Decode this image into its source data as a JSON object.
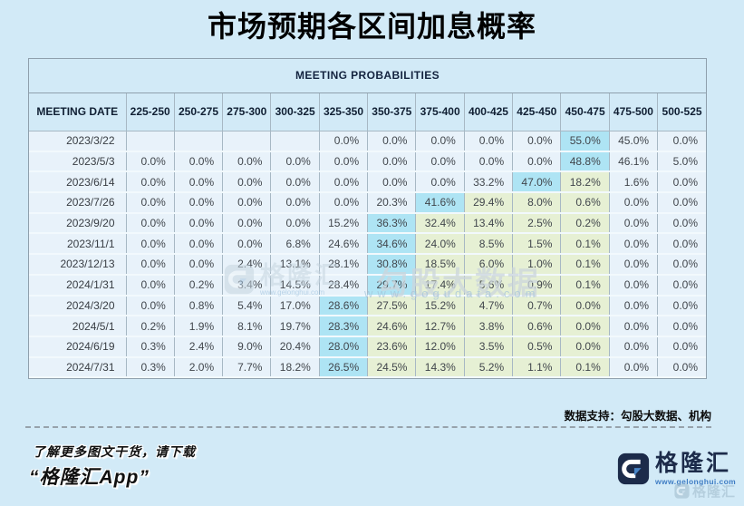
{
  "chart_data": {
    "type": "table",
    "title": "市场预期各区间加息概率",
    "table_header": "MEETING PROBABILITIES",
    "date_column_label": "MEETING DATE",
    "rate_columns": [
      "225-250",
      "250-275",
      "275-300",
      "300-325",
      "325-350",
      "350-375",
      "375-400",
      "400-425",
      "425-450",
      "450-475",
      "475-500",
      "500-525"
    ],
    "rows": [
      {
        "date": "2023/3/22",
        "values": [
          "",
          "",
          "",
          "",
          "0.0%",
          "0.0%",
          "0.0%",
          "0.0%",
          "0.0%",
          "55.0%",
          "45.0%",
          "0.0%"
        ],
        "highlight_blue": 9,
        "highlight_green": []
      },
      {
        "date": "2023/5/3",
        "values": [
          "0.0%",
          "0.0%",
          "0.0%",
          "0.0%",
          "0.0%",
          "0.0%",
          "0.0%",
          "0.0%",
          "0.0%",
          "48.8%",
          "46.1%",
          "5.0%"
        ],
        "highlight_blue": 9,
        "highlight_green": []
      },
      {
        "date": "2023/6/14",
        "values": [
          "0.0%",
          "0.0%",
          "0.0%",
          "0.0%",
          "0.0%",
          "0.0%",
          "0.0%",
          "33.2%",
          "47.0%",
          "18.2%",
          "1.6%",
          "0.0%"
        ],
        "highlight_blue": 8,
        "highlight_green": [
          9
        ]
      },
      {
        "date": "2023/7/26",
        "values": [
          "0.0%",
          "0.0%",
          "0.0%",
          "0.0%",
          "0.0%",
          "20.3%",
          "41.6%",
          "29.4%",
          "8.0%",
          "0.6%",
          "0.0%",
          "0.0%"
        ],
        "highlight_blue": 6,
        "highlight_green": [
          7,
          8,
          9
        ]
      },
      {
        "date": "2023/9/20",
        "values": [
          "0.0%",
          "0.0%",
          "0.0%",
          "0.0%",
          "15.2%",
          "36.3%",
          "32.4%",
          "13.4%",
          "2.5%",
          "0.2%",
          "0.0%",
          "0.0%"
        ],
        "highlight_blue": 5,
        "highlight_green": [
          6,
          7,
          8,
          9
        ]
      },
      {
        "date": "2023/11/1",
        "values": [
          "0.0%",
          "0.0%",
          "0.0%",
          "6.8%",
          "24.6%",
          "34.6%",
          "24.0%",
          "8.5%",
          "1.5%",
          "0.1%",
          "0.0%",
          "0.0%"
        ],
        "highlight_blue": 5,
        "highlight_green": [
          6,
          7,
          8,
          9
        ]
      },
      {
        "date": "2023/12/13",
        "values": [
          "0.0%",
          "0.0%",
          "2.4%",
          "13.1%",
          "28.1%",
          "30.8%",
          "18.5%",
          "6.0%",
          "1.0%",
          "0.1%",
          "0.0%",
          "0.0%"
        ],
        "highlight_blue": 5,
        "highlight_green": [
          6,
          7,
          8,
          9
        ]
      },
      {
        "date": "2024/1/31",
        "values": [
          "0.0%",
          "0.2%",
          "3.4%",
          "14.5%",
          "28.4%",
          "29.7%",
          "17.4%",
          "5.6%",
          "0.9%",
          "0.1%",
          "0.0%",
          "0.0%"
        ],
        "highlight_blue": 5,
        "highlight_green": [
          6,
          7,
          8,
          9
        ]
      },
      {
        "date": "2024/3/20",
        "values": [
          "0.0%",
          "0.8%",
          "5.4%",
          "17.0%",
          "28.6%",
          "27.5%",
          "15.2%",
          "4.7%",
          "0.7%",
          "0.0%",
          "0.0%",
          "0.0%"
        ],
        "highlight_blue": 4,
        "highlight_green": [
          5,
          6,
          7,
          8,
          9
        ]
      },
      {
        "date": "2024/5/1",
        "values": [
          "0.2%",
          "1.9%",
          "8.1%",
          "19.7%",
          "28.3%",
          "24.6%",
          "12.7%",
          "3.8%",
          "0.6%",
          "0.0%",
          "0.0%",
          "0.0%"
        ],
        "highlight_blue": 4,
        "highlight_green": [
          5,
          6,
          7,
          8,
          9
        ]
      },
      {
        "date": "2024/6/19",
        "values": [
          "0.3%",
          "2.4%",
          "9.0%",
          "20.4%",
          "28.0%",
          "23.6%",
          "12.0%",
          "3.5%",
          "0.5%",
          "0.0%",
          "0.0%",
          "0.0%"
        ],
        "highlight_blue": 4,
        "highlight_green": [
          5,
          6,
          7,
          8,
          9
        ]
      },
      {
        "date": "2024/7/31",
        "values": [
          "0.3%",
          "2.0%",
          "7.7%",
          "18.2%",
          "26.5%",
          "24.5%",
          "14.3%",
          "5.2%",
          "1.1%",
          "0.1%",
          "0.0%",
          "0.0%"
        ],
        "highlight_blue": 4,
        "highlight_green": [
          5,
          6,
          7,
          8,
          9
        ]
      }
    ]
  },
  "source_note": "数据支持：勾股大数据、机构",
  "footer": {
    "promo_line1": "了解更多图文干货，请下载",
    "promo_line2": "“格隆汇App”",
    "brand_name": "格隆汇",
    "brand_url": "www.gelonghui.com"
  },
  "watermarks": {
    "center_brand": "格隆汇",
    "center_brand_url": "www.gelonghui.com",
    "gogu_name": "勾股大数据",
    "gogu_url": "www.gogudata.com",
    "corner_brand": "格隆汇"
  },
  "colors": {
    "page_bg": "#d2eaf7",
    "cell_bg": "#e8f2fa",
    "highlight_blue": "#aee4f4",
    "highlight_green": "#e6f0d4",
    "brand_navy": "#1c2b4a",
    "brand_blue": "#3f7dc4"
  }
}
